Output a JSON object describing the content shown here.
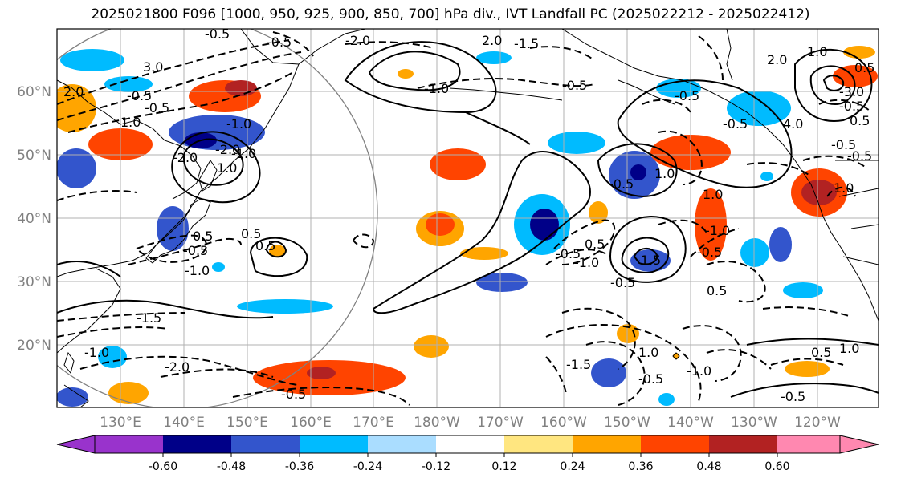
{
  "title": "2025021800 F096 [1000, 950, 925, 900, 850, 700] hPa div., IVT Landfall PC (2025022212 - 2025022412)",
  "map": {
    "lat_labels": [
      "60°N",
      "50°N",
      "40°N",
      "30°N",
      "20°N"
    ],
    "lon_labels": [
      "130°E",
      "140°E",
      "150°E",
      "160°E",
      "170°E",
      "180°W",
      "170°W",
      "160°W",
      "150°W",
      "140°W",
      "130°W",
      "120°W"
    ],
    "grid": true,
    "coastline_color": "#000000",
    "grid_color": "#b0b0b0"
  },
  "contour_labels": [
    "3.0",
    "2.0",
    "-0.5",
    "-2.0",
    "2.0",
    "-1.5",
    "-0.5",
    "-0.5",
    "1.0",
    "-1.0",
    "-2.0",
    "-2.0",
    "1.0",
    "-1.0",
    "0.5",
    "0.5",
    "-0.5",
    "-1.0",
    "0.5",
    "-1.5",
    "-1.0",
    "-2.0",
    "-0.5",
    "-1.0",
    "-0.5",
    "-0.5",
    "-1.0",
    "-0.5",
    "-1.5",
    "1.0",
    "0.5",
    "-1.0",
    "0.5",
    "-0.5",
    "1.0",
    "2.0",
    "1.0",
    "4.0",
    "-3.0",
    "-0.5",
    "-0.5",
    "1.0",
    "0.5",
    "-1.5",
    "1.0",
    "-1.0",
    "-0.5",
    "-0.5",
    "-0.5",
    "-0.5",
    "-0.5",
    "-0.5",
    "0.5",
    "0.5",
    "1.0",
    "-0.5"
  ],
  "colorbar": {
    "ticks": [
      "-0.60",
      "-0.48",
      "-0.36",
      "-0.24",
      "-0.12",
      "0.12",
      "0.24",
      "0.36",
      "0.48",
      "0.60"
    ],
    "under_color": "#9933cc",
    "over_color": "#ff88b0",
    "colors": [
      "#000088",
      "#3355cc",
      "#00bbff",
      "#aaddff",
      "#ffffff",
      "#ffe680",
      "#ffa500",
      "#ff4400",
      "#b22222"
    ]
  },
  "shading_colors": {
    "neg_light": "#aaddff",
    "neg_mid": "#00bbff",
    "neg_strong": "#3355cc",
    "neg_max": "#000088",
    "pos_light": "#ffe680",
    "pos_mid": "#ffa500",
    "pos_strong": "#ff4400",
    "pos_max": "#b22222"
  }
}
